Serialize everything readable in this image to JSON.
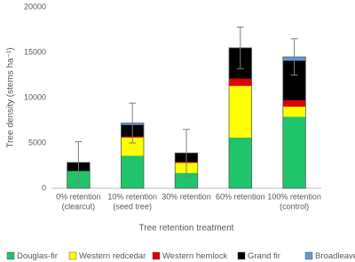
{
  "chart_data": {
    "type": "stacked-bar",
    "y_label": "Tree density (stems ha⁻¹)",
    "x_label": "Tree retention treatment",
    "categories": [
      [
        "0% retention",
        "(clearcut)"
      ],
      [
        "10% retention",
        "(seed tree)"
      ],
      [
        "30% retention"
      ],
      [
        "60% retention"
      ],
      [
        "100% retention",
        "(control)"
      ]
    ],
    "series": [
      {
        "name": "Douglas-fir",
        "color": "#1fc46b",
        "values": [
          1900,
          3600,
          1700,
          5600,
          7900
        ]
      },
      {
        "name": "Western redcedar",
        "color": "#ffff00",
        "values": [
          0,
          2000,
          1100,
          5700,
          1100
        ]
      },
      {
        "name": "Western hemlock",
        "color": "#e00000",
        "values": [
          0,
          100,
          100,
          800,
          700
        ]
      },
      {
        "name": "Grand fir",
        "color": "#000000",
        "values": [
          950,
          1300,
          1000,
          3400,
          4400
        ]
      },
      {
        "name": "Broadleaves",
        "color": "#5b9bd5",
        "values": [
          0,
          200,
          0,
          0,
          400
        ]
      }
    ],
    "errors": [
      2300,
      2200,
      2600,
      2300,
      2000
    ],
    "ylim": [
      0,
      20000
    ],
    "yticks": [
      0,
      5000,
      10000,
      15000,
      20000
    ]
  }
}
